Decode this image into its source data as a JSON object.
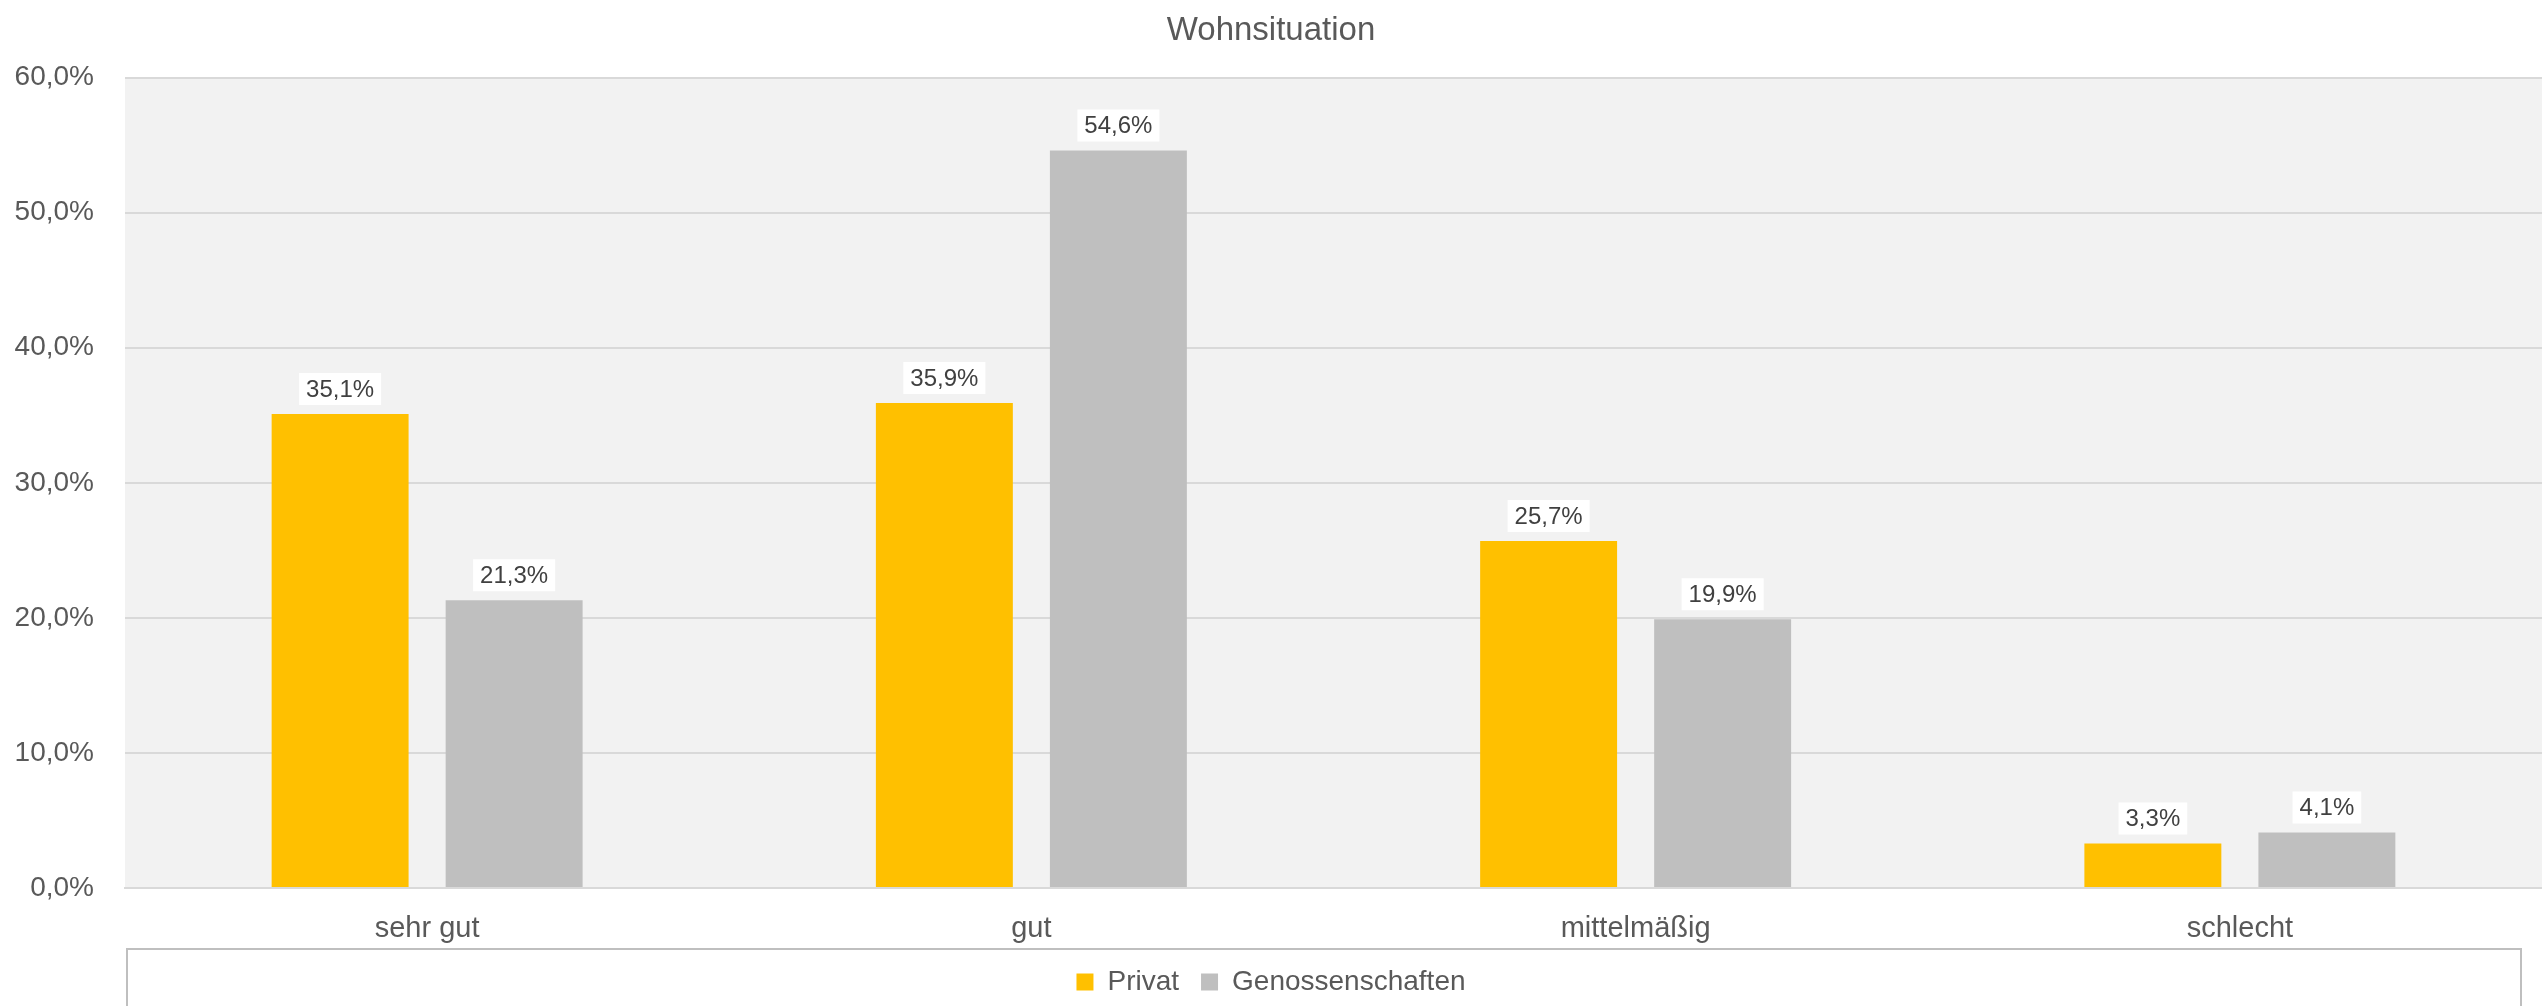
{
  "chart_data": {
    "type": "bar",
    "title": "Wohnsituation",
    "categories": [
      "sehr gut",
      "gut",
      "mittelmäßig",
      "schlecht"
    ],
    "series": [
      {
        "name": "Privat",
        "color": "#ffc000",
        "values": [
          35.1,
          35.9,
          25.7,
          3.3
        ],
        "value_labels": [
          "35,1%",
          "35,9%",
          "25,7%",
          "3,3%"
        ]
      },
      {
        "name": "Genossenschaften",
        "color": "#bfbfbf",
        "values": [
          21.3,
          54.6,
          19.9,
          4.1
        ],
        "value_labels": [
          "21,3%",
          "54,6%",
          "19,9%",
          "4,1%"
        ]
      }
    ],
    "ylim": [
      0,
      60
    ],
    "yticks": [
      {
        "value": 0,
        "label": "0,0%"
      },
      {
        "value": 10,
        "label": "10,0%"
      },
      {
        "value": 20,
        "label": "20,0%"
      },
      {
        "value": 30,
        "label": "30,0%"
      },
      {
        "value": 40,
        "label": "40,0%"
      },
      {
        "value": 50,
        "label": "50,0%"
      },
      {
        "value": 60,
        "label": "60,0%"
      }
    ],
    "grid": "y",
    "legend": "bottom"
  }
}
